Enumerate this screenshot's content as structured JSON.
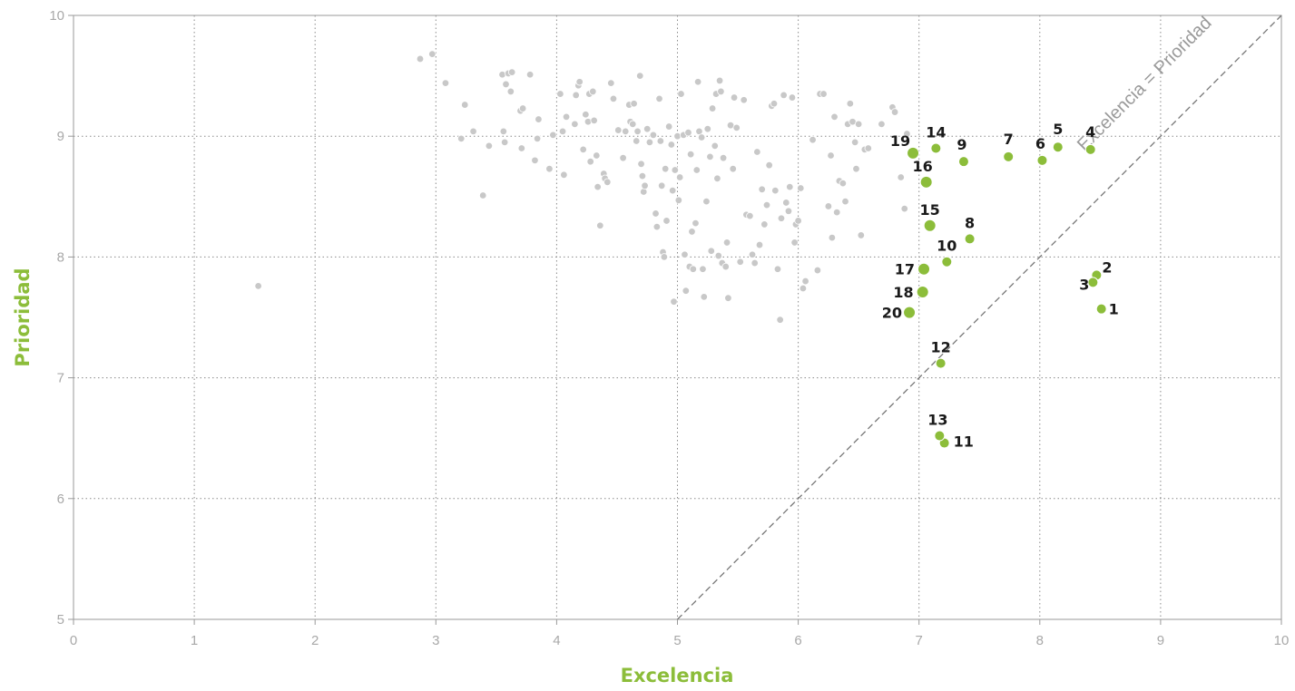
{
  "chart_data": {
    "type": "scatter",
    "xlabel": "Excelencia",
    "ylabel": "Prioridad",
    "xlim": [
      0,
      10
    ],
    "ylim": [
      5,
      10
    ],
    "x_ticks": [
      "0",
      "1",
      "2",
      "3",
      "4",
      "5",
      "6",
      "7",
      "8",
      "9",
      "10"
    ],
    "y_ticks": [
      "5",
      "6",
      "7",
      "8",
      "9",
      "10"
    ],
    "grid": true,
    "reference_line": {
      "label": "Excelencia = Prioridad",
      "x": [
        5,
        10
      ],
      "y": [
        5,
        10
      ]
    },
    "colors": {
      "highlight": "#8cbd3a",
      "background": "#c8c8c8",
      "axis_title": "#8cbd3a",
      "reference": "#777777"
    },
    "highlighted": [
      {
        "label": "1",
        "x": 8.51,
        "y": 7.57
      },
      {
        "label": "2",
        "x": 8.47,
        "y": 7.85
      },
      {
        "label": "3",
        "x": 8.44,
        "y": 7.79
      },
      {
        "label": "4",
        "x": 8.42,
        "y": 8.89
      },
      {
        "label": "5",
        "x": 8.15,
        "y": 8.91
      },
      {
        "label": "6",
        "x": 8.02,
        "y": 8.8
      },
      {
        "label": "7",
        "x": 7.74,
        "y": 8.83
      },
      {
        "label": "8",
        "x": 7.42,
        "y": 8.15
      },
      {
        "label": "9",
        "x": 7.37,
        "y": 8.79
      },
      {
        "label": "10",
        "x": 7.23,
        "y": 7.96
      },
      {
        "label": "11",
        "x": 7.21,
        "y": 6.46
      },
      {
        "label": "12",
        "x": 7.18,
        "y": 7.12
      },
      {
        "label": "13",
        "x": 7.17,
        "y": 6.52
      },
      {
        "label": "14",
        "x": 7.14,
        "y": 8.9
      },
      {
        "label": "15",
        "x": 7.09,
        "y": 8.26
      },
      {
        "label": "16",
        "x": 7.06,
        "y": 8.62
      },
      {
        "label": "17",
        "x": 7.04,
        "y": 7.9
      },
      {
        "label": "18",
        "x": 7.03,
        "y": 7.71
      },
      {
        "label": "19",
        "x": 6.95,
        "y": 8.86
      },
      {
        "label": "20",
        "x": 6.92,
        "y": 7.54
      }
    ],
    "background_points": [
      [
        1.53,
        7.76
      ],
      [
        2.87,
        9.64
      ],
      [
        2.97,
        9.68
      ],
      [
        3.08,
        9.44
      ],
      [
        3.24,
        9.26
      ],
      [
        3.21,
        8.98
      ],
      [
        3.31,
        9.04
      ],
      [
        3.39,
        8.51
      ],
      [
        3.44,
        8.92
      ],
      [
        3.55,
        9.51
      ],
      [
        3.56,
        9.04
      ],
      [
        3.57,
        8.95
      ],
      [
        3.58,
        9.43
      ],
      [
        3.6,
        9.52
      ],
      [
        3.63,
        9.53
      ],
      [
        3.62,
        9.37
      ],
      [
        3.7,
        9.21
      ],
      [
        3.72,
        9.23
      ],
      [
        3.71,
        8.9
      ],
      [
        3.78,
        9.51
      ],
      [
        3.82,
        8.8
      ],
      [
        3.84,
        8.98
      ],
      [
        3.85,
        9.14
      ],
      [
        3.94,
        8.73
      ],
      [
        3.97,
        9.01
      ],
      [
        4.03,
        9.35
      ],
      [
        4.05,
        9.04
      ],
      [
        4.06,
        8.68
      ],
      [
        4.08,
        9.16
      ],
      [
        4.15,
        9.1
      ],
      [
        4.16,
        9.34
      ],
      [
        4.18,
        9.42
      ],
      [
        4.19,
        9.45
      ],
      [
        4.22,
        8.89
      ],
      [
        4.24,
        9.18
      ],
      [
        4.26,
        9.12
      ],
      [
        4.27,
        9.35
      ],
      [
        4.28,
        8.79
      ],
      [
        4.3,
        9.37
      ],
      [
        4.31,
        9.13
      ],
      [
        4.33,
        8.84
      ],
      [
        4.34,
        8.58
      ],
      [
        4.36,
        8.26
      ],
      [
        4.39,
        8.69
      ],
      [
        4.4,
        8.65
      ],
      [
        4.42,
        8.62
      ],
      [
        4.45,
        9.44
      ],
      [
        4.47,
        9.31
      ],
      [
        4.51,
        9.05
      ],
      [
        4.55,
        8.82
      ],
      [
        4.57,
        9.04
      ],
      [
        4.6,
        9.26
      ],
      [
        4.61,
        9.12
      ],
      [
        4.63,
        9.1
      ],
      [
        4.64,
        9.27
      ],
      [
        4.66,
        8.96
      ],
      [
        4.67,
        9.04
      ],
      [
        4.69,
        9.5
      ],
      [
        4.7,
        8.77
      ],
      [
        4.71,
        8.67
      ],
      [
        4.72,
        8.54
      ],
      [
        4.73,
        8.59
      ],
      [
        4.75,
        9.06
      ],
      [
        4.77,
        8.95
      ],
      [
        4.8,
        9.01
      ],
      [
        4.82,
        8.36
      ],
      [
        4.83,
        8.25
      ],
      [
        4.85,
        9.31
      ],
      [
        4.86,
        8.96
      ],
      [
        4.87,
        8.59
      ],
      [
        4.88,
        8.04
      ],
      [
        4.89,
        8.0
      ],
      [
        4.9,
        8.73
      ],
      [
        4.91,
        8.3
      ],
      [
        4.93,
        9.08
      ],
      [
        4.95,
        8.93
      ],
      [
        4.96,
        8.55
      ],
      [
        4.97,
        7.63
      ],
      [
        4.98,
        8.72
      ],
      [
        5.0,
        9.0
      ],
      [
        5.01,
        8.47
      ],
      [
        5.02,
        8.66
      ],
      [
        5.03,
        9.35
      ],
      [
        5.05,
        9.01
      ],
      [
        5.06,
        8.02
      ],
      [
        5.07,
        7.72
      ],
      [
        5.09,
        9.03
      ],
      [
        5.1,
        7.92
      ],
      [
        5.11,
        8.85
      ],
      [
        5.12,
        8.21
      ],
      [
        5.13,
        7.9
      ],
      [
        5.15,
        8.28
      ],
      [
        5.16,
        8.72
      ],
      [
        5.17,
        9.45
      ],
      [
        5.18,
        9.04
      ],
      [
        5.2,
        8.99
      ],
      [
        5.21,
        7.9
      ],
      [
        5.22,
        7.67
      ],
      [
        5.24,
        8.46
      ],
      [
        5.25,
        9.06
      ],
      [
        5.27,
        8.83
      ],
      [
        5.28,
        8.05
      ],
      [
        5.29,
        9.23
      ],
      [
        5.31,
        8.92
      ],
      [
        5.32,
        9.35
      ],
      [
        5.33,
        8.65
      ],
      [
        5.34,
        8.01
      ],
      [
        5.35,
        9.46
      ],
      [
        5.36,
        9.37
      ],
      [
        5.37,
        7.95
      ],
      [
        5.38,
        8.82
      ],
      [
        5.4,
        7.92
      ],
      [
        5.41,
        8.12
      ],
      [
        5.42,
        7.66
      ],
      [
        5.44,
        9.09
      ],
      [
        5.46,
        8.73
      ],
      [
        5.47,
        9.32
      ],
      [
        5.49,
        9.07
      ],
      [
        5.52,
        7.96
      ],
      [
        5.55,
        9.3
      ],
      [
        5.57,
        8.35
      ],
      [
        5.6,
        8.34
      ],
      [
        5.62,
        8.02
      ],
      [
        5.64,
        7.95
      ],
      [
        5.66,
        8.87
      ],
      [
        5.68,
        8.1
      ],
      [
        5.7,
        8.56
      ],
      [
        5.72,
        8.27
      ],
      [
        5.74,
        8.43
      ],
      [
        5.76,
        8.76
      ],
      [
        5.78,
        9.25
      ],
      [
        5.8,
        9.27
      ],
      [
        5.81,
        8.55
      ],
      [
        5.83,
        7.9
      ],
      [
        5.85,
        7.48
      ],
      [
        5.86,
        8.32
      ],
      [
        5.88,
        9.34
      ],
      [
        5.9,
        8.45
      ],
      [
        5.92,
        8.38
      ],
      [
        5.93,
        8.58
      ],
      [
        5.95,
        9.32
      ],
      [
        5.97,
        8.12
      ],
      [
        5.98,
        8.27
      ],
      [
        6.0,
        8.3
      ],
      [
        6.02,
        8.57
      ],
      [
        6.04,
        7.74
      ],
      [
        6.06,
        7.8
      ],
      [
        6.12,
        8.97
      ],
      [
        6.16,
        7.89
      ],
      [
        6.18,
        9.35
      ],
      [
        6.21,
        9.35
      ],
      [
        6.25,
        8.42
      ],
      [
        6.27,
        8.84
      ],
      [
        6.28,
        8.16
      ],
      [
        6.3,
        9.16
      ],
      [
        6.32,
        8.37
      ],
      [
        6.34,
        8.63
      ],
      [
        6.37,
        8.61
      ],
      [
        6.39,
        8.46
      ],
      [
        6.41,
        9.1
      ],
      [
        6.43,
        9.27
      ],
      [
        6.45,
        9.12
      ],
      [
        6.47,
        8.95
      ],
      [
        6.48,
        8.73
      ],
      [
        6.5,
        9.1
      ],
      [
        6.52,
        8.18
      ],
      [
        6.55,
        8.89
      ],
      [
        6.58,
        8.9
      ],
      [
        6.69,
        9.1
      ],
      [
        6.78,
        9.24
      ],
      [
        6.8,
        9.2
      ],
      [
        6.85,
        8.66
      ],
      [
        6.88,
        8.4
      ],
      [
        6.9,
        9.02
      ]
    ]
  }
}
